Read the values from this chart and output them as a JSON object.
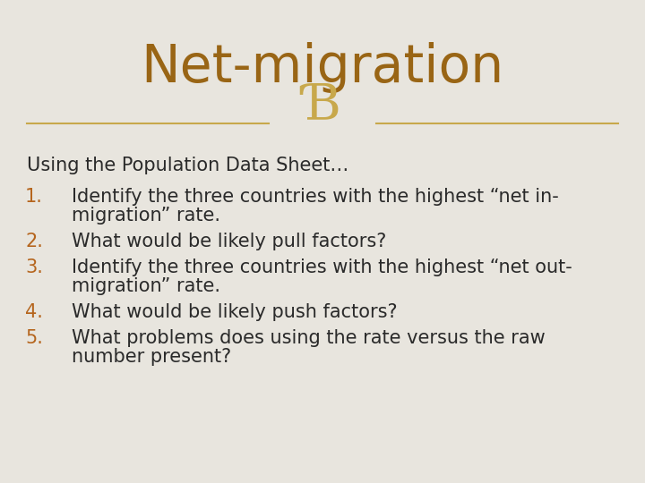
{
  "title": "Net-migration",
  "title_color": "#996515",
  "title_fontsize": 42,
  "title_fontstyle": "normal",
  "title_fontweight": "normal",
  "background_color": "#E8E5DE",
  "divider_color": "#C8A84B",
  "ornament_color": "#C8A84B",
  "ornament_fontsize": 40,
  "intro_text": "Using the Population Data Sheet…",
  "intro_fontsize": 15,
  "intro_color": "#2a2a2a",
  "number_color": "#B5651D",
  "text_color": "#2a2a2a",
  "item_fontsize": 15,
  "items": [
    {
      "number": "1.",
      "lines": [
        "Identify the three countries with the highest “net in-",
        "migration” rate."
      ]
    },
    {
      "number": "2.",
      "lines": [
        "What would be likely pull factors?"
      ]
    },
    {
      "number": "3.",
      "lines": [
        "Identify the three countries with the highest “net out-",
        "migration” rate."
      ]
    },
    {
      "number": "4.",
      "lines": [
        "What would be likely push factors?"
      ]
    },
    {
      "number": "5.",
      "lines": [
        "What problems does using the rate versus the raw",
        "number present?"
      ]
    }
  ]
}
